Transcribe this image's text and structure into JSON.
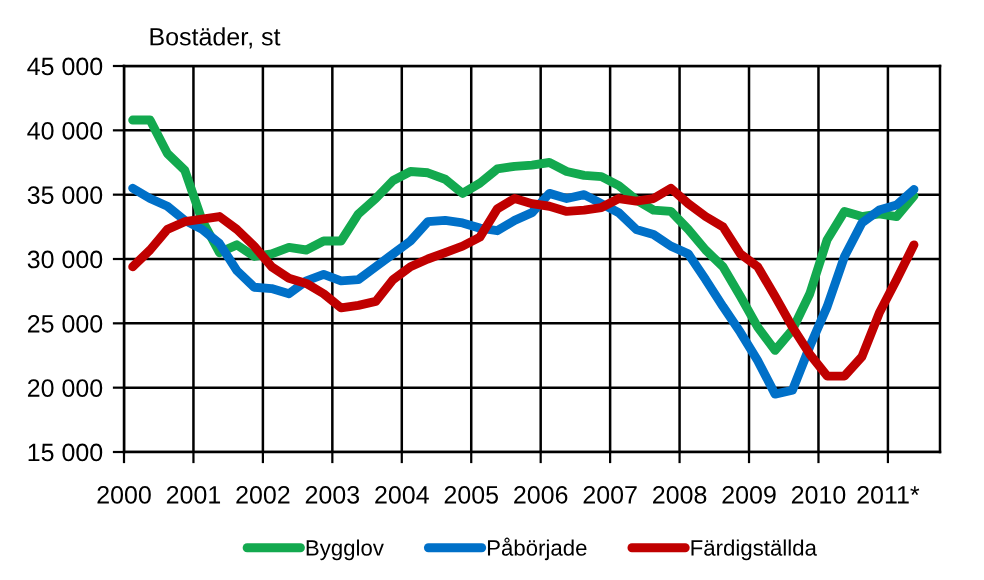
{
  "chart_data": {
    "type": "line",
    "ylabel": "Bostäder, st",
    "x": [
      2000.125,
      2000.375,
      2000.625,
      2000.875,
      2001.125,
      2001.375,
      2001.625,
      2001.875,
      2002.125,
      2002.375,
      2002.625,
      2002.875,
      2003.125,
      2003.375,
      2003.625,
      2003.875,
      2004.125,
      2004.375,
      2004.625,
      2004.875,
      2005.125,
      2005.375,
      2005.625,
      2005.875,
      2006.125,
      2006.375,
      2006.625,
      2006.875,
      2007.125,
      2007.375,
      2007.625,
      2007.875,
      2008.125,
      2008.375,
      2008.625,
      2008.875,
      2009.125,
      2009.375,
      2009.625,
      2009.875,
      2010.125,
      2010.375,
      2010.625,
      2010.875,
      2011.125,
      2011.375
    ],
    "series": [
      {
        "name": "Bygglov",
        "color": "#13a94f",
        "values": [
          40800,
          40800,
          38200,
          36900,
          33000,
          30500,
          31100,
          30200,
          30400,
          30900,
          30700,
          31400,
          31400,
          33500,
          34700,
          36100,
          36800,
          36700,
          36200,
          35100,
          35900,
          37000,
          37200,
          37300,
          37500,
          36800,
          36500,
          36400,
          35700,
          34600,
          33800,
          33700,
          32300,
          30700,
          29400,
          27100,
          24700,
          22900,
          24500,
          27300,
          31500,
          33700,
          33300,
          33500,
          33300,
          34900
        ]
      },
      {
        "name": "Påbörjade",
        "color": "#0070c8",
        "values": [
          35500,
          34700,
          34100,
          33000,
          32300,
          31200,
          29100,
          27800,
          27700,
          27300,
          28300,
          28800,
          28300,
          28400,
          29400,
          30400,
          31400,
          32900,
          33000,
          32800,
          32400,
          32200,
          33000,
          33600,
          35100,
          34700,
          35000,
          34300,
          33600,
          32300,
          31900,
          31000,
          30400,
          28400,
          26300,
          24300,
          22100,
          19500,
          19800,
          23200,
          26300,
          30200,
          32800,
          33800,
          34200,
          35400
        ]
      },
      {
        "name": "Färdigställda",
        "color": "#c00000",
        "values": [
          29400,
          30700,
          32300,
          32900,
          33100,
          33300,
          32300,
          31000,
          29400,
          28500,
          28100,
          27300,
          26200,
          26400,
          26700,
          28400,
          29400,
          30000,
          30500,
          31000,
          31700,
          33900,
          34700,
          34300,
          34100,
          33700,
          33800,
          34000,
          34700,
          34500,
          34700,
          35500,
          34300,
          33300,
          32500,
          30400,
          29400,
          27100,
          24700,
          22600,
          20900,
          20900,
          22400,
          25800,
          28400,
          31100
        ]
      }
    ],
    "xlim": [
      2000,
      2011.75
    ],
    "ylim": [
      15000,
      45000
    ],
    "xticks": [
      2000,
      2001,
      2002,
      2003,
      2004,
      2005,
      2006,
      2007,
      2008,
      2009,
      2010,
      {
        "value": 2011,
        "label": "2011*"
      }
    ],
    "yticks": [
      {
        "value": 15000,
        "label": "15 000"
      },
      {
        "value": 20000,
        "label": "20 000"
      },
      {
        "value": 25000,
        "label": "25 000"
      },
      {
        "value": 30000,
        "label": "30 000"
      },
      {
        "value": 35000,
        "label": "35 000"
      },
      {
        "value": 40000,
        "label": "40 000"
      },
      {
        "value": 45000,
        "label": "45 000"
      }
    ],
    "grid": true,
    "legend": "bottom",
    "marker": "none",
    "line_style": "solid"
  }
}
